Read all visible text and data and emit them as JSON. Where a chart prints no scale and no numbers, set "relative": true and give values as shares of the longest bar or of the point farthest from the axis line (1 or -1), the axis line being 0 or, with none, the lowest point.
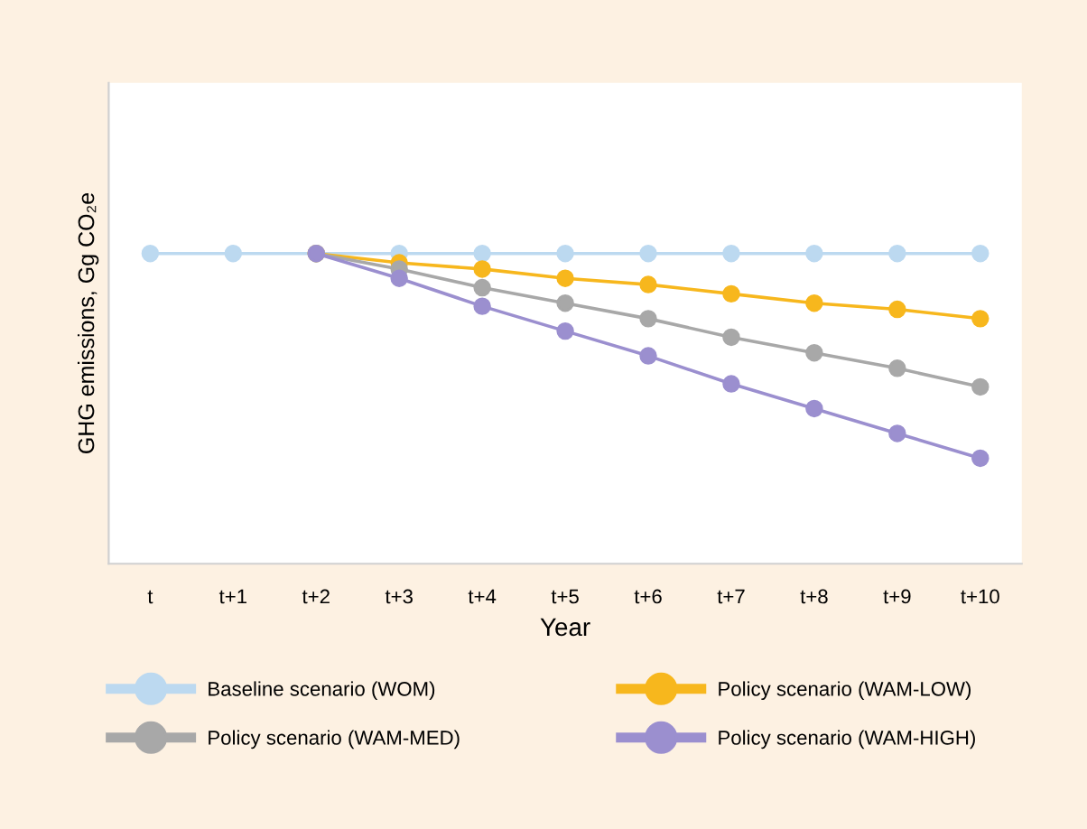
{
  "chart_data": {
    "type": "line",
    "relative": true,
    "xlabel": "Year",
    "ylabel": "GHG emissions, Gg CO₂e",
    "categories": [
      "t",
      "t+1",
      "t+2",
      "t+3",
      "t+4",
      "t+5",
      "t+6",
      "t+7",
      "t+8",
      "t+9",
      "t+10"
    ],
    "series": [
      {
        "name": "Baseline scenario (WOM)",
        "color": "#bcd9f0",
        "values": [
          1,
          1,
          1,
          1,
          1,
          1,
          1,
          1,
          1,
          1,
          1
        ]
      },
      {
        "name": "Policy scenario (WAM-LOW)",
        "color": "#f7b71d",
        "values": [
          null,
          null,
          1,
          0.97,
          0.95,
          0.92,
          0.9,
          0.87,
          0.84,
          0.82,
          0.79
        ]
      },
      {
        "name": "Policy scenario (WAM-MED)",
        "color": "#a8a8a8",
        "values": [
          null,
          null,
          1,
          0.95,
          0.89,
          0.84,
          0.79,
          0.73,
          0.68,
          0.63,
          0.57
        ]
      },
      {
        "name": "Policy scenario (WAM-HIGH)",
        "color": "#9b8fcf",
        "values": [
          null,
          null,
          1,
          0.92,
          0.83,
          0.75,
          0.67,
          0.58,
          0.5,
          0.42,
          0.34
        ]
      }
    ],
    "marker": "circle",
    "line_style": "solid",
    "grid": false,
    "legend": "bottom"
  }
}
